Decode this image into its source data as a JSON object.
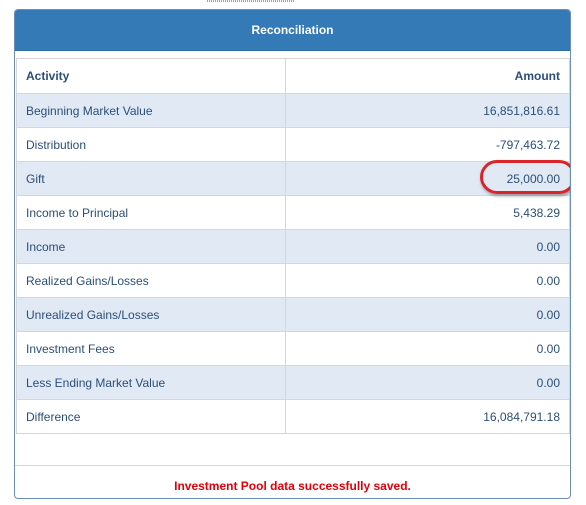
{
  "panel": {
    "title": "Reconciliation"
  },
  "table": {
    "headers": {
      "activity": "Activity",
      "amount": "Amount"
    },
    "rows": [
      {
        "activity": "Beginning Market Value",
        "amount": "16,851,816.61"
      },
      {
        "activity": "Distribution",
        "amount": "-797,463.72"
      },
      {
        "activity": "Gift",
        "amount": "25,000.00"
      },
      {
        "activity": "Income to Principal",
        "amount": "5,438.29"
      },
      {
        "activity": "Income",
        "amount": "0.00"
      },
      {
        "activity": "Realized Gains/Losses",
        "amount": "0.00"
      },
      {
        "activity": "Unrealized Gains/Losses",
        "amount": "0.00"
      },
      {
        "activity": "Investment Fees",
        "amount": "0.00"
      },
      {
        "activity": "Less Ending Market Value",
        "amount": "0.00"
      },
      {
        "activity": "Difference",
        "amount": "16,084,791.18"
      }
    ]
  },
  "status": {
    "message": "Investment Pool data successfully saved."
  },
  "colors": {
    "header_bg": "#337ab7",
    "row_alt_bg": "#e1e9f5",
    "text": "#2b4f78",
    "success_message": "#e0000a",
    "annotation": "#d9252a"
  }
}
